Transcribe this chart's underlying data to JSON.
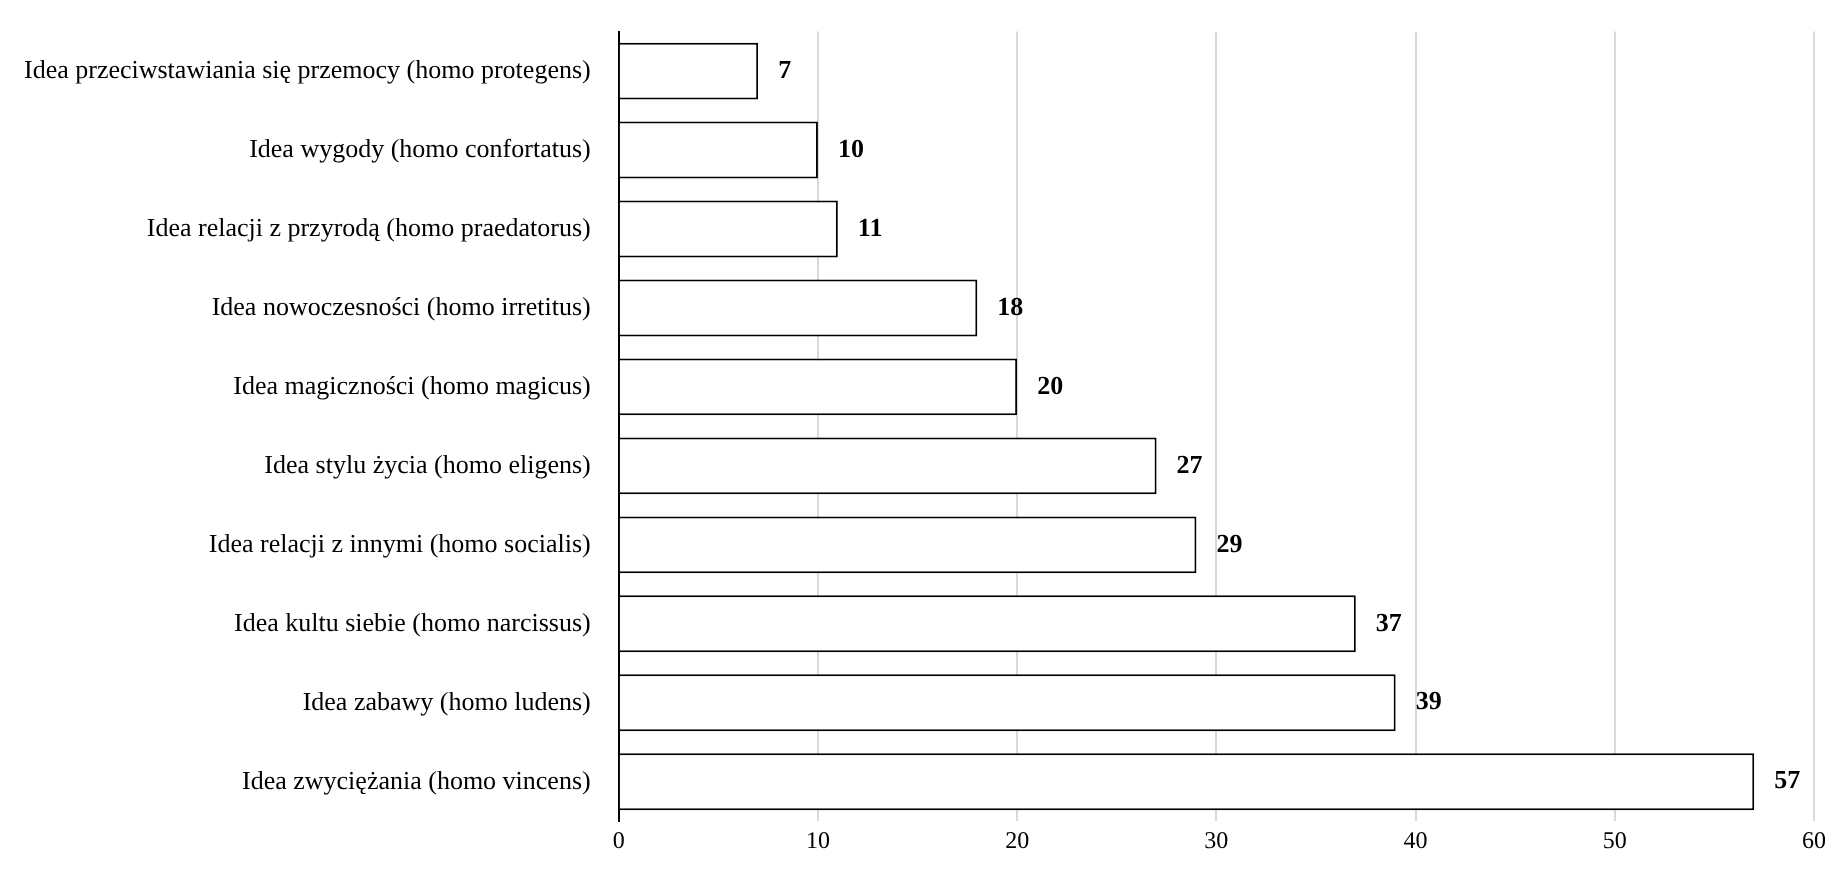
{
  "chart_data": {
    "type": "bar",
    "orientation": "horizontal",
    "categories": [
      "Idea przeciwstawiania się przemocy (homo protegens)",
      "Idea wygody (homo confortatus)",
      "Idea relacji z przyrodą (homo praedatorus)",
      "Idea nowoczesności (homo irretitus)",
      "Idea magiczności (homo magicus)",
      "Idea stylu życia (homo eligens)",
      "Idea relacji z innymi (homo socialis)",
      "Idea kultu siebie (homo narcissus)",
      "Idea zabawy (homo ludens)",
      "Idea zwyciężania (homo vincens)"
    ],
    "values": [
      7,
      10,
      11,
      18,
      20,
      27,
      29,
      37,
      39,
      57
    ],
    "color": "#ffffff",
    "xlim": [
      0,
      60
    ],
    "xticks": [
      0,
      10,
      20,
      30,
      40,
      50,
      60
    ],
    "grid": "x",
    "data_labels": true,
    "legend": false
  }
}
